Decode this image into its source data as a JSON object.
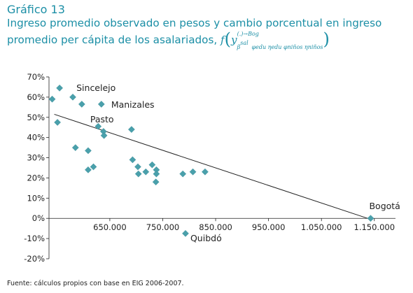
{
  "header": {
    "figure_label": "Gráfico 13",
    "title_line1": "Ingreso promedio observado en pesos y cambio porcentual en ingreso",
    "title_line2": "promedio per cápita de los asalariados,",
    "formula": {
      "f": "f",
      "y": "y",
      "sup_top": "(.)→Bog",
      "sup_bottom": "β",
      "sup_bottom_sup": "sal",
      "sub_terms": "φedu ηedu φniños ηniños"
    }
  },
  "source": "Fuente: cálculos propios con base en EIG 2006-2007.",
  "colors": {
    "title": "#1c8fa6",
    "marker": "#4aa0ab",
    "trend": "#222222",
    "axis": "#222222"
  },
  "chart_data": {
    "type": "scatter",
    "title": "",
    "xlabel": "",
    "ylabel": "",
    "xlim": [
      535000,
      1190000
    ],
    "ylim": [
      -20,
      70
    ],
    "x_ticks": [
      650000,
      750000,
      850000,
      950000,
      1050000,
      1150000
    ],
    "x_tick_labels": [
      "650.000",
      "750.000",
      "850.000",
      "950.000",
      "1.050.000",
      "1.150.000"
    ],
    "y_ticks": [
      -20,
      -10,
      0,
      10,
      20,
      30,
      40,
      50,
      60,
      70
    ],
    "y_tick_labels": [
      "-20%",
      "-10%",
      "0%",
      "10%",
      "20%",
      "30%",
      "40%",
      "50%",
      "60%",
      "70%"
    ],
    "points": [
      {
        "x": 541000,
        "y": 59
      },
      {
        "x": 551000,
        "y": 47.5
      },
      {
        "x": 555000,
        "y": 64.5
      },
      {
        "x": 580000,
        "y": 60
      },
      {
        "x": 585000,
        "y": 35
      },
      {
        "x": 597000,
        "y": 56.5
      },
      {
        "x": 609000,
        "y": 33.5
      },
      {
        "x": 609000,
        "y": 24
      },
      {
        "x": 619000,
        "y": 25.5
      },
      {
        "x": 628000,
        "y": 45.5
      },
      {
        "x": 634000,
        "y": 56.5
      },
      {
        "x": 638000,
        "y": 43
      },
      {
        "x": 639000,
        "y": 41
      },
      {
        "x": 691000,
        "y": 44
      },
      {
        "x": 693000,
        "y": 29
      },
      {
        "x": 703000,
        "y": 25.5
      },
      {
        "x": 704000,
        "y": 22
      },
      {
        "x": 718000,
        "y": 23
      },
      {
        "x": 730000,
        "y": 26.5
      },
      {
        "x": 738000,
        "y": 24
      },
      {
        "x": 738000,
        "y": 22
      },
      {
        "x": 737000,
        "y": 18
      },
      {
        "x": 788000,
        "y": 22
      },
      {
        "x": 807000,
        "y": 23
      },
      {
        "x": 830000,
        "y": 23
      },
      {
        "x": 793000,
        "y": -7.5
      },
      {
        "x": 1143000,
        "y": 0
      }
    ],
    "point_labels": [
      {
        "text": "Sincelejo",
        "x": 555000,
        "y": 64.5,
        "dx": 24,
        "dy": 4
      },
      {
        "text": "Pasto",
        "x": 597000,
        "y": 56.5,
        "dx": 12,
        "dy": 26
      },
      {
        "text": "Manizales",
        "x": 634000,
        "y": 56.5,
        "dx": 14,
        "dy": 5
      },
      {
        "text": "Quibdó",
        "x": 793000,
        "y": -7.5,
        "dx": 7,
        "dy": 11
      },
      {
        "text": "Bogotá",
        "x": 1143000,
        "y": 0,
        "dx": -2,
        "dy": -13
      }
    ],
    "trendline": {
      "x": [
        545000,
        1143000
      ],
      "y": [
        51.5,
        -0.5
      ]
    },
    "grid": false,
    "legend": "none"
  }
}
